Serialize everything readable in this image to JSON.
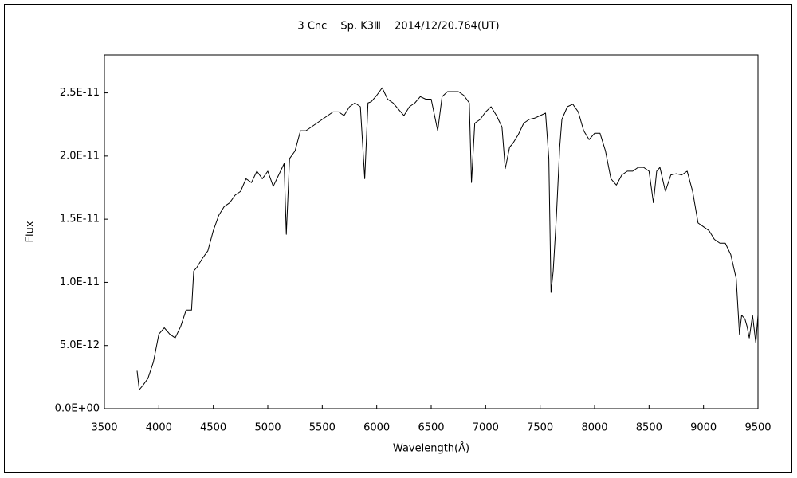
{
  "chart_data": {
    "type": "line",
    "title": "3 Cnc　 Sp. K3Ⅲ　 2014/12/20.764(UT)",
    "x_label": "Wavelength(Å)",
    "y_label": "Flux",
    "xlim": [
      3500,
      9500
    ],
    "xticks": [
      3500,
      4000,
      4500,
      5000,
      5500,
      6000,
      6500,
      7000,
      7500,
      8000,
      8500,
      9000,
      9500
    ],
    "ylim": [
      0,
      2.8e-11
    ],
    "yticks": [
      {
        "value": 0,
        "label": "0.0E+00"
      },
      {
        "value": 5e-12,
        "label": "5.0E-12"
      },
      {
        "value": 1e-11,
        "label": "1.0E-11"
      },
      {
        "value": 1.5e-11,
        "label": "1.5E-11"
      },
      {
        "value": 2e-11,
        "label": "2.0E-11"
      },
      {
        "value": 2.5e-11,
        "label": "2.5E-11"
      }
    ],
    "grid": false,
    "series": [
      {
        "color": "#000000",
        "x": [
          3800,
          3820,
          3850,
          3900,
          3950,
          4000,
          4050,
          4100,
          4150,
          4200,
          4250,
          4300,
          4320,
          4350,
          4400,
          4450,
          4500,
          4550,
          4600,
          4650,
          4700,
          4750,
          4800,
          4850,
          4900,
          4950,
          5000,
          5050,
          5100,
          5150,
          5170,
          5200,
          5250,
          5300,
          5350,
          5400,
          5450,
          5500,
          5550,
          5600,
          5650,
          5700,
          5750,
          5800,
          5850,
          5890,
          5920,
          5950,
          6000,
          6050,
          6100,
          6150,
          6200,
          6250,
          6300,
          6350,
          6400,
          6450,
          6500,
          6560,
          6600,
          6650,
          6700,
          6750,
          6800,
          6850,
          6870,
          6900,
          6950,
          7000,
          7050,
          7100,
          7150,
          7180,
          7220,
          7250,
          7300,
          7350,
          7400,
          7450,
          7500,
          7550,
          7580,
          7600,
          7620,
          7650,
          7680,
          7700,
          7750,
          7800,
          7850,
          7900,
          7950,
          8000,
          8050,
          8100,
          8150,
          8200,
          8250,
          8300,
          8350,
          8400,
          8450,
          8500,
          8540,
          8570,
          8600,
          8650,
          8700,
          8750,
          8800,
          8850,
          8900,
          8950,
          9000,
          9050,
          9100,
          9150,
          9200,
          9250,
          9300,
          9330,
          9350,
          9380,
          9400,
          9420,
          9450,
          9480,
          9500
        ],
        "values": [
          3e-12,
          1.5e-12,
          1.8e-12,
          2.4e-12,
          3.7e-12,
          5.9e-12,
          6.4e-12,
          5.9e-12,
          5.6e-12,
          6.5e-12,
          7.8e-12,
          7.8e-12,
          1.09e-11,
          1.12e-11,
          1.19e-11,
          1.25e-11,
          1.41e-11,
          1.53e-11,
          1.6e-11,
          1.63e-11,
          1.69e-11,
          1.72e-11,
          1.82e-11,
          1.79e-11,
          1.88e-11,
          1.82e-11,
          1.88e-11,
          1.76e-11,
          1.85e-11,
          1.94e-11,
          1.38e-11,
          1.98e-11,
          2.04e-11,
          2.2e-11,
          2.2e-11,
          2.23e-11,
          2.26e-11,
          2.29e-11,
          2.32e-11,
          2.35e-11,
          2.35e-11,
          2.32e-11,
          2.39e-11,
          2.42e-11,
          2.39e-11,
          1.82e-11,
          2.42e-11,
          2.43e-11,
          2.48e-11,
          2.54e-11,
          2.45e-11,
          2.42e-11,
          2.37e-11,
          2.32e-11,
          2.39e-11,
          2.42e-11,
          2.47e-11,
          2.45e-11,
          2.45e-11,
          2.2e-11,
          2.47e-11,
          2.51e-11,
          2.51e-11,
          2.51e-11,
          2.48e-11,
          2.42e-11,
          1.79e-11,
          2.26e-11,
          2.29e-11,
          2.35e-11,
          2.39e-11,
          2.32e-11,
          2.23e-11,
          1.9e-11,
          2.07e-11,
          2.1e-11,
          2.17e-11,
          2.26e-11,
          2.29e-11,
          2.3e-11,
          2.32e-11,
          2.34e-11,
          1.98e-11,
          9.2e-12,
          1.09e-11,
          1.53e-11,
          2.07e-11,
          2.29e-11,
          2.39e-11,
          2.41e-11,
          2.35e-11,
          2.2e-11,
          2.13e-11,
          2.18e-11,
          2.18e-11,
          2.04e-11,
          1.82e-11,
          1.77e-11,
          1.85e-11,
          1.88e-11,
          1.88e-11,
          1.91e-11,
          1.91e-11,
          1.88e-11,
          1.63e-11,
          1.88e-11,
          1.91e-11,
          1.72e-11,
          1.85e-11,
          1.86e-11,
          1.85e-11,
          1.88e-11,
          1.72e-11,
          1.47e-11,
          1.44e-11,
          1.41e-11,
          1.34e-11,
          1.31e-11,
          1.31e-11,
          1.22e-11,
          1.03e-11,
          5.9e-12,
          7.4e-12,
          7.1e-12,
          6.5e-12,
          5.6e-12,
          7.4e-12,
          5.2e-12,
          7.4e-12
        ]
      }
    ]
  }
}
